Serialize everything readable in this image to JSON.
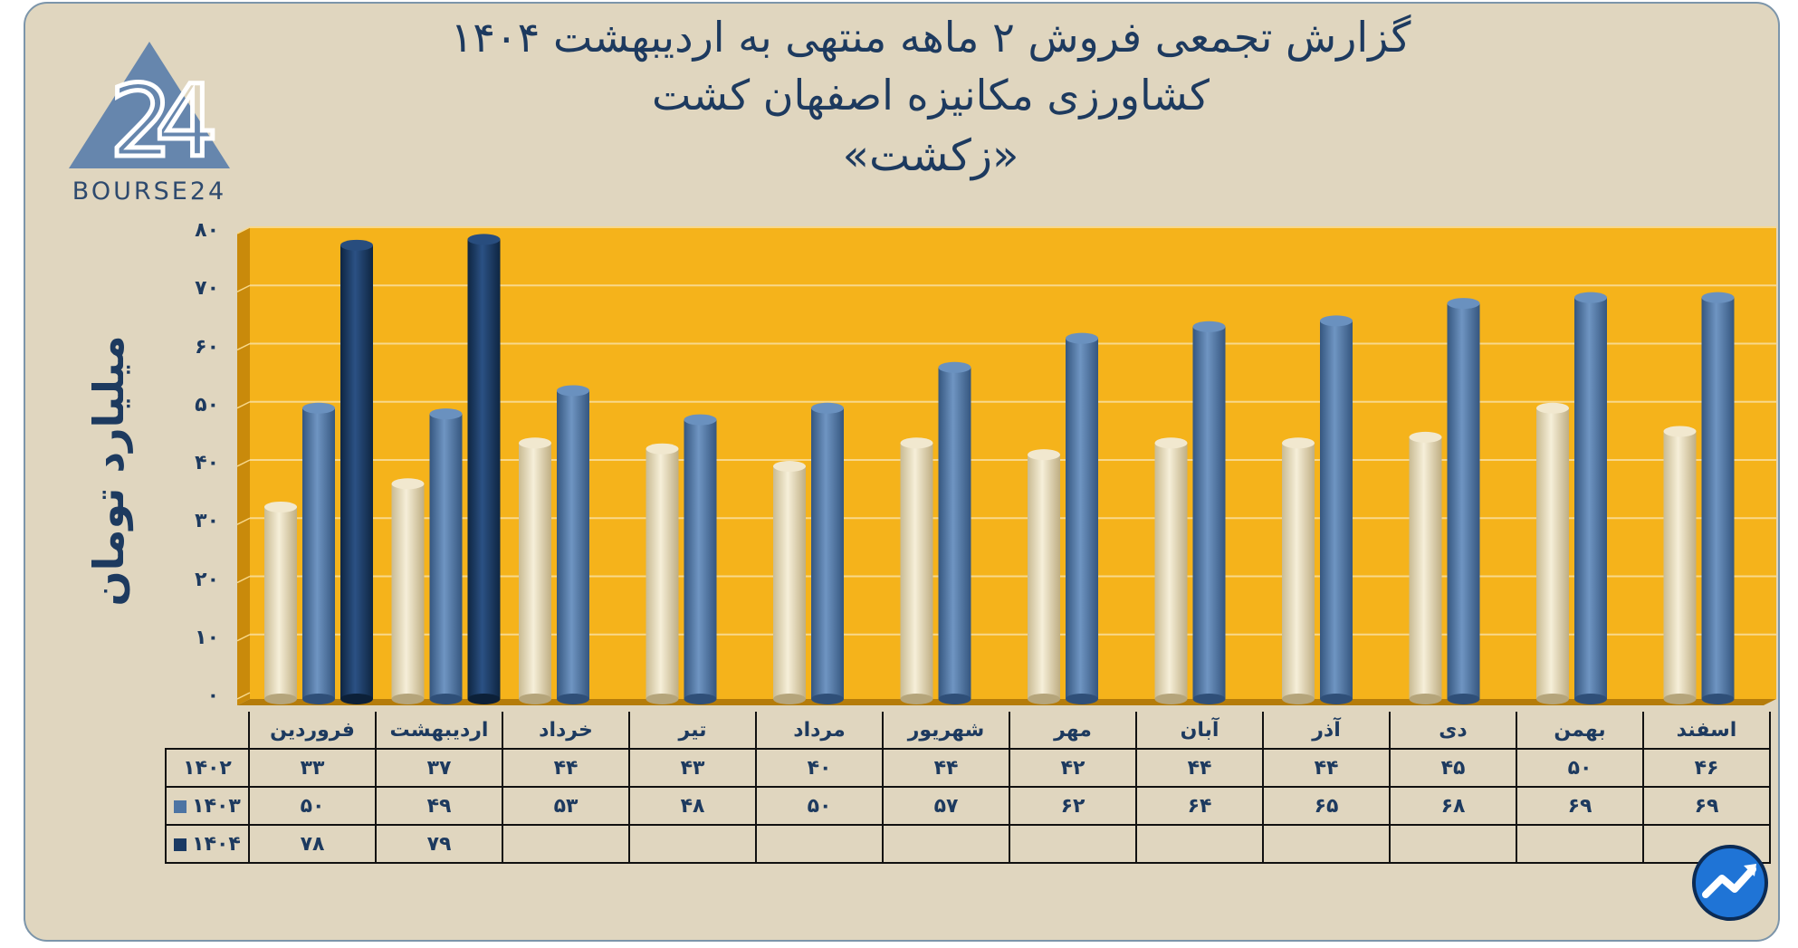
{
  "title": {
    "line1": "گزارش تجمعی فروش ۲ ماهه منتهی به اردیبهشت ۱۴۰۴",
    "line2": "کشاورزی مکانیزه اصفهان کشت",
    "line3": "«زکشت»"
  },
  "logo": {
    "text": "BOURSE24",
    "mark": "24"
  },
  "colors": {
    "frame_bg": "#e0d6bf",
    "plot_bg": "#f5b31b",
    "series_1402": "#e8ddbf",
    "series_1403": "#4d74a3",
    "series_1404": "#1b3a63",
    "text": "#1d3a5f"
  },
  "chart_data": {
    "type": "bar",
    "ylabel": "میلیارد تومان",
    "ylim": [
      0,
      80
    ],
    "yticks": [
      "۰",
      "۱۰",
      "۲۰",
      "۳۰",
      "۴۰",
      "۵۰",
      "۶۰",
      "۷۰",
      "۸۰"
    ],
    "grid": true,
    "categories": [
      "فروردین",
      "اردیبهشت",
      "خرداد",
      "تیر",
      "مرداد",
      "شهریور",
      "مهر",
      "آبان",
      "آذر",
      "دی",
      "بهمن",
      "اسفند"
    ],
    "series": [
      {
        "name": "۱۴۰۲",
        "values": [
          33,
          37,
          44,
          43,
          40,
          44,
          42,
          44,
          44,
          45,
          50,
          46
        ],
        "labels": [
          "۳۳",
          "۳۷",
          "۴۴",
          "۴۳",
          "۴۰",
          "۴۴",
          "۴۲",
          "۴۴",
          "۴۴",
          "۴۵",
          "۵۰",
          "۴۶"
        ]
      },
      {
        "name": "۱۴۰۳",
        "values": [
          50,
          49,
          53,
          48,
          50,
          57,
          62,
          64,
          65,
          68,
          69,
          69
        ],
        "labels": [
          "۵۰",
          "۴۹",
          "۵۳",
          "۴۸",
          "۵۰",
          "۵۷",
          "۶۲",
          "۶۴",
          "۶۵",
          "۶۸",
          "۶۹",
          "۶۹"
        ]
      },
      {
        "name": "۱۴۰۴",
        "values": [
          78,
          79,
          null,
          null,
          null,
          null,
          null,
          null,
          null,
          null,
          null,
          null
        ],
        "labels": [
          "۷۸",
          "۷۹",
          "",
          "",
          "",
          "",
          "",
          "",
          "",
          "",
          "",
          ""
        ]
      }
    ]
  }
}
